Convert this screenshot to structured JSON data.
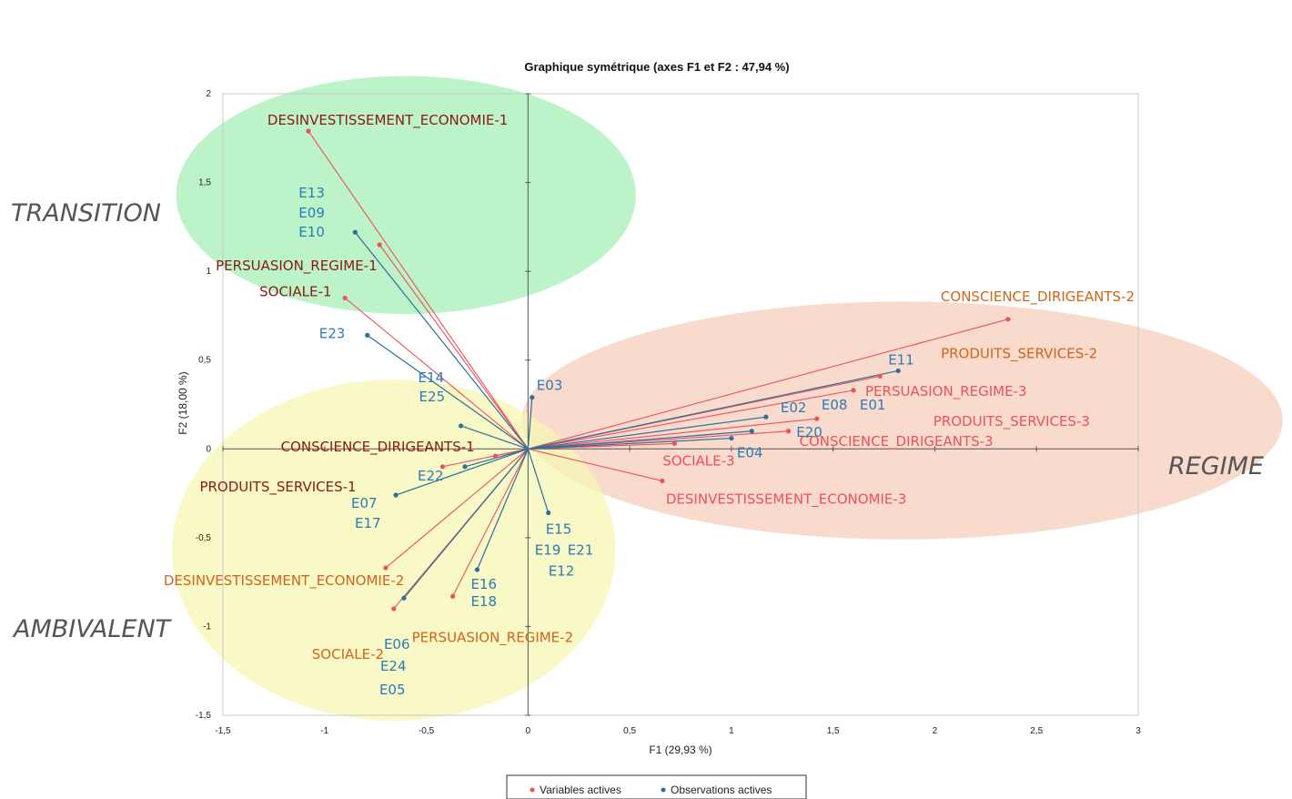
{
  "chart_data": {
    "type": "scatter",
    "title": "Graphique symétrique (axes F1 et F2 : 47,94 %)",
    "xlabel": "F1 (29,93 %)",
    "ylabel": "F2 (18,00 %)",
    "xlim": [
      -1.5,
      3
    ],
    "ylim": [
      -1.5,
      2
    ],
    "xticks": [
      -1.5,
      -1,
      -0.5,
      0,
      0.5,
      1,
      1.5,
      2,
      2.5,
      3
    ],
    "xtick_labels": [
      "-1,5",
      "-1",
      "-0,5",
      "0",
      "0,5",
      "1",
      "1,5",
      "2",
      "2,5",
      "3"
    ],
    "yticks": [
      -1.5,
      -1,
      -0.5,
      0,
      0.5,
      1,
      1.5,
      2
    ],
    "ytick_labels": [
      "-1,5",
      "-1",
      "-0,5",
      "0",
      "0,5",
      "1",
      "1,5",
      "2"
    ],
    "grid": false,
    "legend_position": "bottom-center",
    "colors": {
      "variables": "#f0505a",
      "observations": "#2b6f9c",
      "label_cluster1": "#8b1a10",
      "label_cluster2": "#d4631a",
      "label_cluster3": "#f0505a",
      "label_observations": "#2b7bb9",
      "zone_transition": "#b8f2c6",
      "zone_regime": "#f7d7c8",
      "zone_ambivalent": "#f7f7b4"
    },
    "zones": [
      {
        "label": "TRANSITION",
        "fill": "#b8f2c6",
        "center": [
          -0.6,
          1.43
        ],
        "radii": [
          1.13,
          0.67
        ]
      },
      {
        "label": "REGIME",
        "fill": "#f7d7c8",
        "center": [
          1.84,
          0.16
        ],
        "radii": [
          1.87,
          0.67
        ]
      },
      {
        "label": "AMBIVALENT",
        "fill": "#f7f7b4",
        "center": [
          -0.66,
          -0.57
        ],
        "radii": [
          1.09,
          0.96
        ]
      }
    ],
    "series": [
      {
        "name": "Variables actives",
        "points": [
          {
            "x": -1.08,
            "y": 1.79,
            "label": "DESINVESTISSEMENT_ECONOMIE-1",
            "group": 1
          },
          {
            "x": -0.73,
            "y": 1.15,
            "label": "PERSUASION_REGIME-1",
            "group": 1
          },
          {
            "x": -0.9,
            "y": 0.85,
            "label": "SOCIALE-1",
            "group": 1
          },
          {
            "x": -0.16,
            "y": -0.04,
            "label": "CONSCIENCE_DIRIGEANTS-1",
            "group": 1
          },
          {
            "x": -0.42,
            "y": -0.1,
            "label": "PRODUITS_SERVICES-1",
            "group": 1
          },
          {
            "x": 2.36,
            "y": 0.73,
            "label": "CONSCIENCE_DIRIGEANTS-2",
            "group": 2
          },
          {
            "x": 1.73,
            "y": 0.41,
            "label": "PRODUITS_SERVICES-2",
            "group": 2
          },
          {
            "x": -0.7,
            "y": -0.67,
            "label": "DESINVESTISSEMENT_ECONOMIE-2",
            "group": 2
          },
          {
            "x": -0.66,
            "y": -0.9,
            "label": "SOCIALE-2",
            "group": 2
          },
          {
            "x": -0.37,
            "y": -0.83,
            "label": "PERSUASION_REGIME-2",
            "group": 2
          },
          {
            "x": 1.6,
            "y": 0.33,
            "label": "PERSUASION_REGIME-3",
            "group": 3
          },
          {
            "x": 1.42,
            "y": 0.17,
            "label": "PRODUITS_SERVICES-3",
            "group": 3
          },
          {
            "x": 1.28,
            "y": 0.1,
            "label": "CONSCIENCE_DIRIGEANTS-3",
            "group": 3
          },
          {
            "x": 0.72,
            "y": 0.03,
            "label": "SOCIALE-3",
            "group": 3
          },
          {
            "x": 0.66,
            "y": -0.18,
            "label": "DESINVESTISSEMENT_ECONOMIE-3",
            "group": 3
          }
        ]
      },
      {
        "name": "Observations actives",
        "points": [
          {
            "x": -0.85,
            "y": 1.22,
            "labels": [
              "E13",
              "E09",
              "E10"
            ]
          },
          {
            "x": -0.79,
            "y": 0.64,
            "labels": [
              "E23"
            ]
          },
          {
            "x": 0.02,
            "y": 0.29,
            "labels": [
              "E03"
            ]
          },
          {
            "x": -0.33,
            "y": 0.13,
            "labels": [
              "E14",
              "E25"
            ]
          },
          {
            "x": -0.31,
            "y": -0.1,
            "labels": [
              "E22"
            ]
          },
          {
            "x": -0.65,
            "y": -0.26,
            "labels": [
              "E07",
              "E17"
            ]
          },
          {
            "x": 1.82,
            "y": 0.44,
            "labels": [
              "E11"
            ]
          },
          {
            "x": 1.17,
            "y": 0.18,
            "labels": [
              "E02",
              "E08",
              "E01"
            ]
          },
          {
            "x": 1.1,
            "y": 0.1,
            "labels": [
              "E20"
            ]
          },
          {
            "x": 1.0,
            "y": 0.06,
            "labels": [
              "E04"
            ]
          },
          {
            "x": 0.1,
            "y": -0.36,
            "labels": [
              "E15",
              "E19",
              "E21",
              "E12"
            ]
          },
          {
            "x": -0.25,
            "y": -0.68,
            "labels": [
              "E16",
              "E18"
            ]
          },
          {
            "x": -0.61,
            "y": -0.84,
            "labels": [
              "E06",
              "E24",
              "E05"
            ]
          }
        ]
      }
    ]
  }
}
